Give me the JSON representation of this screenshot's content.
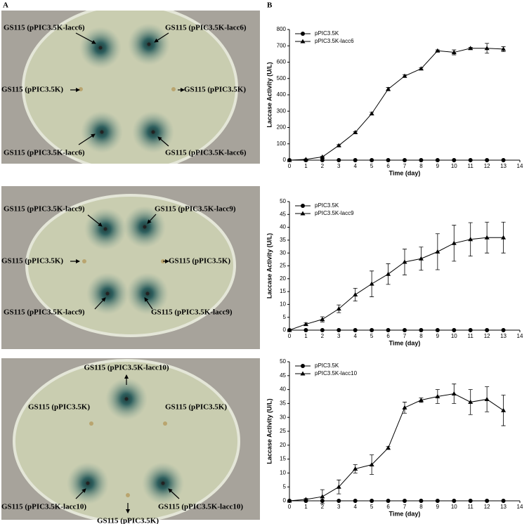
{
  "panels": {
    "left": "A",
    "right": "B"
  },
  "plates": [
    {
      "labels": [
        "GS115 (pPIC3.5K-lacc6)",
        "GS115 (pPIC3.5K-lacc6)",
        "GS115 (pPIC3.5K)",
        "GS115 (pPIC3.5K)",
        "GS115 (pPIC3.5K-lacc6)",
        "GS115 (pPIC3.5K-lacc6)"
      ]
    },
    {
      "labels": [
        "GS115 (pPIC3.5K-lacc9)",
        "GS115 (pPIC3.5K-lacc9)",
        "GS115 (pPIC3.5K)",
        "GS115 (pPIC3.5K)",
        "GS115 (pPIC3.5K-lacc9)",
        "GS115 (pPIC3.5K-lacc9)"
      ]
    },
    {
      "labels": [
        "GS115 (pPIC3.5K-lacc10)",
        "GS115 (pPIC3.5K)",
        "GS115 (pPIC3.5K)",
        "GS115 (pPIC3.5K-lacc10)",
        "GS115 (pPIC3.5K-lacc10)",
        "GS115 (pPIC3.5K)"
      ]
    }
  ],
  "chart_data": [
    {
      "type": "line",
      "xlabel": "Time (day)",
      "ylabel": "Laccase Activity (U/L)",
      "x": [
        0,
        1,
        2,
        3,
        4,
        5,
        6,
        7,
        8,
        9,
        10,
        11,
        12,
        13
      ],
      "xlim": [
        0,
        14
      ],
      "xticks": [
        0,
        1,
        2,
        3,
        4,
        5,
        6,
        7,
        8,
        9,
        10,
        11,
        12,
        13,
        14
      ],
      "ylim": [
        0,
        800
      ],
      "yticks": [
        0,
        100,
        200,
        300,
        400,
        500,
        600,
        700,
        800
      ],
      "legend": "upper left",
      "series": [
        {
          "name": "pPIC3.5K",
          "marker": "circle",
          "color": "#000000",
          "values": [
            0,
            0,
            0,
            0,
            0,
            0,
            0,
            0,
            0,
            0,
            0,
            0,
            0,
            0
          ]
        },
        {
          "name": "pPIC3.5K-lacc6",
          "marker": "triangle",
          "color": "#000000",
          "values": [
            0,
            5,
            20,
            90,
            170,
            285,
            435,
            515,
            560,
            670,
            660,
            685,
            685,
            680
          ],
          "errors": [
            0,
            2,
            3,
            5,
            5,
            8,
            10,
            8,
            5,
            5,
            15,
            5,
            30,
            15
          ]
        }
      ]
    },
    {
      "type": "line",
      "xlabel": "Time (day)",
      "ylabel": "Laccase Activity (U/L)",
      "x": [
        0,
        1,
        2,
        3,
        4,
        5,
        6,
        7,
        8,
        9,
        10,
        11,
        12,
        13
      ],
      "xlim": [
        0,
        14
      ],
      "xticks": [
        0,
        1,
        2,
        3,
        4,
        5,
        6,
        7,
        8,
        9,
        10,
        11,
        12,
        13,
        14
      ],
      "ylim": [
        0,
        50
      ],
      "yticks": [
        0,
        5,
        10,
        15,
        20,
        25,
        30,
        35,
        40,
        45,
        50
      ],
      "legend": "upper left",
      "series": [
        {
          "name": "pPIC3.5K",
          "marker": "circle",
          "color": "#000000",
          "values": [
            0,
            0,
            0,
            0,
            0,
            0,
            0,
            0,
            0,
            0,
            0,
            0,
            0,
            0
          ]
        },
        {
          "name": "pPIC3.5K-lacc9",
          "marker": "triangle",
          "color": "#000000",
          "values": [
            0,
            2.3,
            4.2,
            8.3,
            13.8,
            18,
            21.8,
            26.5,
            27.8,
            30.5,
            33.8,
            35.3,
            36,
            36
          ],
          "errors": [
            0,
            0.5,
            1,
            1.5,
            2.5,
            5,
            4,
            5,
            4.5,
            7,
            7,
            6.5,
            6,
            6
          ]
        }
      ]
    },
    {
      "type": "line",
      "xlabel": "Time (day)",
      "ylabel": "Laccase Activity (U/L)",
      "x": [
        0,
        1,
        2,
        3,
        4,
        5,
        6,
        7,
        8,
        9,
        10,
        11,
        12,
        13
      ],
      "xlim": [
        0,
        14
      ],
      "xticks": [
        0,
        1,
        2,
        3,
        4,
        5,
        6,
        7,
        8,
        9,
        10,
        11,
        12,
        13,
        14
      ],
      "ylim": [
        0,
        50
      ],
      "yticks": [
        0,
        5,
        10,
        15,
        20,
        25,
        30,
        35,
        40,
        45,
        50
      ],
      "legend": "upper left",
      "series": [
        {
          "name": "pPIC3.5K",
          "marker": "circle",
          "color": "#000000",
          "values": [
            0,
            0,
            0,
            0,
            0,
            0,
            0,
            0,
            0,
            0,
            0,
            0,
            0,
            0
          ]
        },
        {
          "name": "pPIC3.5K-lacc10",
          "marker": "triangle",
          "color": "#000000",
          "values": [
            0,
            0.5,
            1.5,
            5,
            11.5,
            13,
            19,
            33.5,
            36.2,
            37.5,
            38.5,
            35.5,
            36.5,
            32.5
          ],
          "errors": [
            0,
            0.3,
            2.5,
            2.5,
            1.5,
            3.5,
            0.5,
            2,
            0.8,
            2.5,
            3.5,
            4.5,
            4.5,
            5.5
          ]
        }
      ]
    }
  ]
}
